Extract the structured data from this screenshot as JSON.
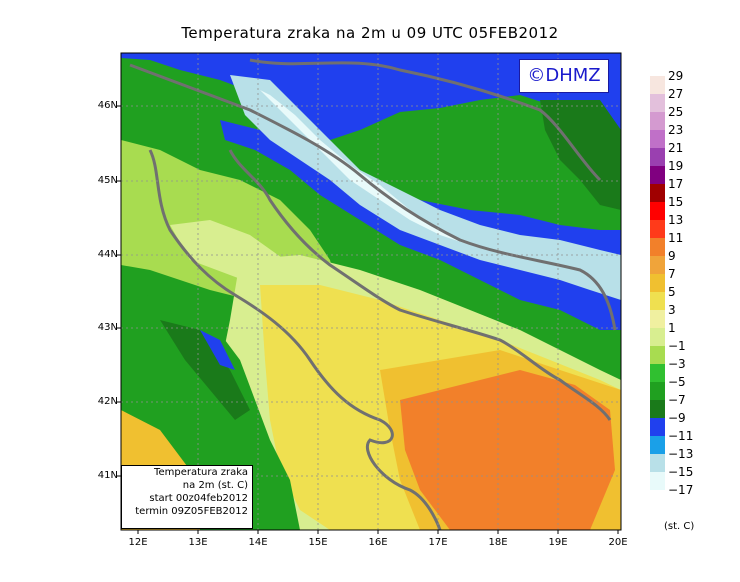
{
  "title": "Temperatura zraka na 2m u 09 UTC 05FEB2012",
  "watermark": "©DHMZ",
  "legend_box": {
    "line1": "Temperatura zraka",
    "line2": "na 2m (st. C)",
    "line3": "start 00z04feb2012",
    "line4": "termin 09Z05FEB2012"
  },
  "lat_labels": [
    "46N",
    "45N",
    "44N",
    "43N",
    "42N",
    "41N"
  ],
  "lon_labels": [
    "12E",
    "13E",
    "14E",
    "15E",
    "16E",
    "17E",
    "18E",
    "19E",
    "20E"
  ],
  "colorbar": {
    "unit": "(st. C)",
    "labels": [
      "29",
      "27",
      "25",
      "23",
      "21",
      "19",
      "17",
      "15",
      "13",
      "11",
      "9",
      "7",
      "5",
      "3",
      "1",
      "−1",
      "−3",
      "−5",
      "−7",
      "−9",
      "−11",
      "−13",
      "−15",
      "−17"
    ],
    "colors": {
      "pale_pink": "#f7e6df",
      "pink": "#e3c0dc",
      "orchid": "#d49ad0",
      "violet": "#c070c8",
      "purple": "#9a40b0",
      "dark_purple": "#800080",
      "dark_red": "#a00000",
      "red_dark": "#c80000",
      "red": "#ff0000",
      "red_orange": "#ff3a1a",
      "orange_red": "#ff6020",
      "orange": "#f2802a",
      "light_orange": "#f0a43a",
      "yellow_orange": "#f0c030",
      "yellow": "#efe050",
      "pale_yellow": "#f0f0a0",
      "light_green": "#d8ee90",
      "lime": "#a8dc50",
      "green": "#30c030",
      "mid_green": "#20a020",
      "dark_green": "#1a7a1a",
      "blue": "#2040ee",
      "light_blue": "#1aa0e8",
      "pale_blue": "#b8e0e8",
      "cyan_white": "#e8fafa"
    }
  }
}
